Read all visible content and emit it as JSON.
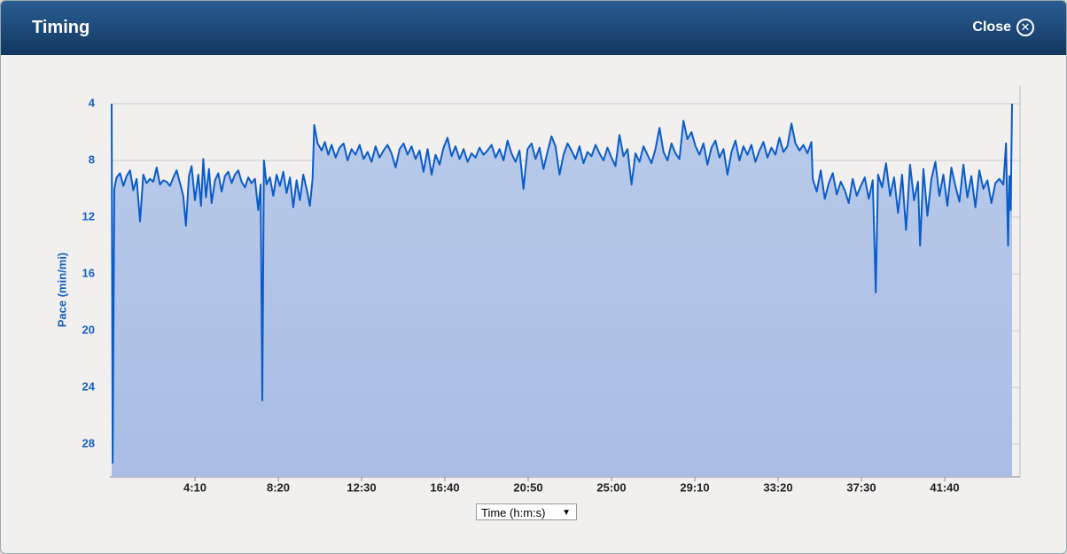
{
  "dialog": {
    "title": "Timing",
    "close": "Close",
    "x_selector": "Time (h:m:s)"
  },
  "chart_data": {
    "type": "area",
    "y_label": "Pace (min/mi)",
    "series": [
      {
        "name": "Pace",
        "color": "#0a5cc8",
        "x": [
          0,
          3,
          8,
          15,
          25,
          35,
          45,
          55,
          65,
          75,
          85,
          95,
          105,
          115,
          125,
          135,
          145,
          155,
          165,
          175,
          185,
          195,
          205,
          215,
          223,
          232,
          240,
          250,
          260,
          268,
          275,
          283,
          292,
          300,
          310,
          320,
          330,
          340,
          350,
          360,
          370,
          380,
          390,
          400,
          410,
          420,
          430,
          440,
          447,
          452,
          457,
          465,
          475,
          485,
          495,
          505,
          515,
          525,
          535,
          545,
          555,
          565,
          575,
          585,
          595,
          603,
          608,
          618,
          630,
          640,
          650,
          660,
          672,
          684,
          696,
          708,
          720,
          732,
          744,
          756,
          768,
          780,
          792,
          804,
          816,
          828,
          840,
          852,
          864,
          876,
          888,
          900,
          912,
          924,
          936,
          948,
          960,
          972,
          984,
          996,
          1008,
          1020,
          1032,
          1044,
          1056,
          1068,
          1080,
          1092,
          1104,
          1116,
          1128,
          1140,
          1152,
          1164,
          1176,
          1188,
          1200,
          1212,
          1224,
          1236,
          1248,
          1260,
          1272,
          1284,
          1296,
          1308,
          1320,
          1332,
          1344,
          1356,
          1368,
          1380,
          1392,
          1404,
          1416,
          1428,
          1440,
          1452,
          1464,
          1476,
          1488,
          1500,
          1512,
          1524,
          1536,
          1548,
          1560,
          1572,
          1584,
          1596,
          1608,
          1620,
          1632,
          1644,
          1656,
          1668,
          1680,
          1692,
          1704,
          1716,
          1728,
          1740,
          1752,
          1764,
          1776,
          1788,
          1800,
          1812,
          1824,
          1836,
          1848,
          1860,
          1872,
          1884,
          1896,
          1908,
          1920,
          1932,
          1944,
          1956,
          1968,
          1980,
          1992,
          2004,
          2016,
          2028,
          2040,
          2052,
          2064,
          2076,
          2088,
          2100,
          2104,
          2116,
          2128,
          2140,
          2152,
          2164,
          2176,
          2188,
          2200,
          2212,
          2224,
          2236,
          2248,
          2260,
          2272,
          2284,
          2293,
          2300,
          2312,
          2324,
          2336,
          2348,
          2360,
          2372,
          2384,
          2396,
          2408,
          2420,
          2426,
          2436,
          2448,
          2460,
          2472,
          2484,
          2496,
          2508,
          2520,
          2532,
          2544,
          2556,
          2568,
          2580,
          2592,
          2604,
          2616,
          2628,
          2640,
          2652,
          2664,
          2676,
          2684,
          2690,
          2694,
          2698,
          2702
        ],
        "values": [
          4,
          29.3,
          10,
          9.2,
          8.9,
          9.8,
          9.1,
          8.7,
          10.1,
          9.3,
          12.3,
          9.0,
          9.6,
          9.3,
          9.5,
          8.5,
          9.7,
          9.4,
          9.5,
          9.8,
          9.2,
          8.7,
          9.6,
          10.5,
          12.6,
          9.1,
          8.4,
          10.8,
          9.0,
          11.2,
          7.9,
          10.6,
          8.6,
          11.0,
          9.4,
          8.9,
          10.2,
          9.1,
          8.8,
          9.6,
          9.0,
          8.7,
          9.5,
          9.9,
          9.2,
          9.6,
          9.3,
          11.5,
          9.7,
          24.9,
          8.0,
          9.7,
          9.2,
          10.5,
          9.0,
          9.8,
          8.8,
          10.3,
          9.2,
          11.3,
          9.4,
          10.8,
          9.0,
          10.0,
          11.2,
          9.3,
          5.5,
          6.8,
          7.3,
          6.7,
          7.6,
          6.9,
          7.8,
          7.1,
          6.8,
          8.0,
          7.2,
          7.6,
          6.9,
          7.9,
          7.4,
          8.1,
          7.0,
          7.8,
          7.3,
          6.9,
          7.5,
          8.5,
          7.2,
          6.8,
          7.6,
          7.0,
          7.9,
          7.3,
          8.8,
          7.2,
          9.0,
          7.6,
          8.3,
          7.1,
          6.4,
          7.7,
          7.0,
          7.9,
          7.2,
          8.1,
          7.5,
          7.8,
          7.1,
          7.6,
          7.3,
          6.9,
          7.8,
          7.2,
          8.0,
          6.6,
          7.5,
          8.1,
          7.3,
          10.0,
          7.2,
          6.8,
          7.9,
          7.1,
          8.6,
          7.4,
          6.3,
          7.0,
          9.0,
          7.6,
          6.8,
          7.3,
          7.9,
          7.0,
          8.2,
          7.4,
          7.7,
          6.9,
          7.5,
          8.0,
          7.1,
          7.8,
          8.4,
          6.2,
          7.7,
          7.2,
          9.7,
          7.5,
          8.1,
          7.0,
          7.6,
          8.2,
          7.2,
          5.7,
          7.4,
          8.0,
          6.8,
          7.5,
          7.9,
          5.2,
          6.5,
          6.0,
          7.0,
          7.6,
          6.8,
          8.3,
          7.1,
          6.6,
          7.8,
          7.2,
          9.0,
          7.4,
          6.6,
          8.0,
          7.0,
          7.6,
          6.9,
          8.1,
          7.3,
          6.7,
          7.8,
          7.1,
          7.6,
          6.4,
          7.4,
          7.0,
          5.4,
          6.8,
          7.3,
          6.9,
          7.5,
          6.7,
          9.3,
          10.2,
          8.7,
          10.7,
          9.6,
          8.9,
          10.4,
          9.5,
          10.1,
          11.0,
          9.3,
          10.5,
          9.8,
          9.2,
          10.7,
          9.4,
          17.3,
          9.0,
          9.9,
          8.2,
          10.5,
          9.2,
          11.7,
          9.0,
          12.9,
          8.3,
          10.8,
          9.5,
          14.0,
          8.6,
          11.9,
          9.3,
          8.1,
          10.5,
          9.0,
          11.2,
          8.5,
          9.8,
          10.9,
          8.3,
          10.6,
          9.1,
          11.3,
          8.7,
          10.0,
          9.4,
          11.0,
          9.6,
          9.3,
          9.7,
          6.8,
          14.0,
          9.1,
          11.5,
          4
        ]
      }
    ],
    "xlim": [
      0,
      2726
    ],
    "ylim": [
      30.3,
      4
    ],
    "xticks": [
      {
        "value": 250,
        "label": "4:10"
      },
      {
        "value": 500,
        "label": "8:20"
      },
      {
        "value": 750,
        "label": "12:30"
      },
      {
        "value": 1000,
        "label": "16:40"
      },
      {
        "value": 1250,
        "label": "20:50"
      },
      {
        "value": 1500,
        "label": "25:00"
      },
      {
        "value": 1750,
        "label": "29:10"
      },
      {
        "value": 2000,
        "label": "33:20"
      },
      {
        "value": 2250,
        "label": "37:30"
      },
      {
        "value": 2500,
        "label": "41:40"
      }
    ],
    "yticks": [
      4,
      8,
      12,
      16,
      20,
      24,
      28
    ],
    "grid": true
  }
}
